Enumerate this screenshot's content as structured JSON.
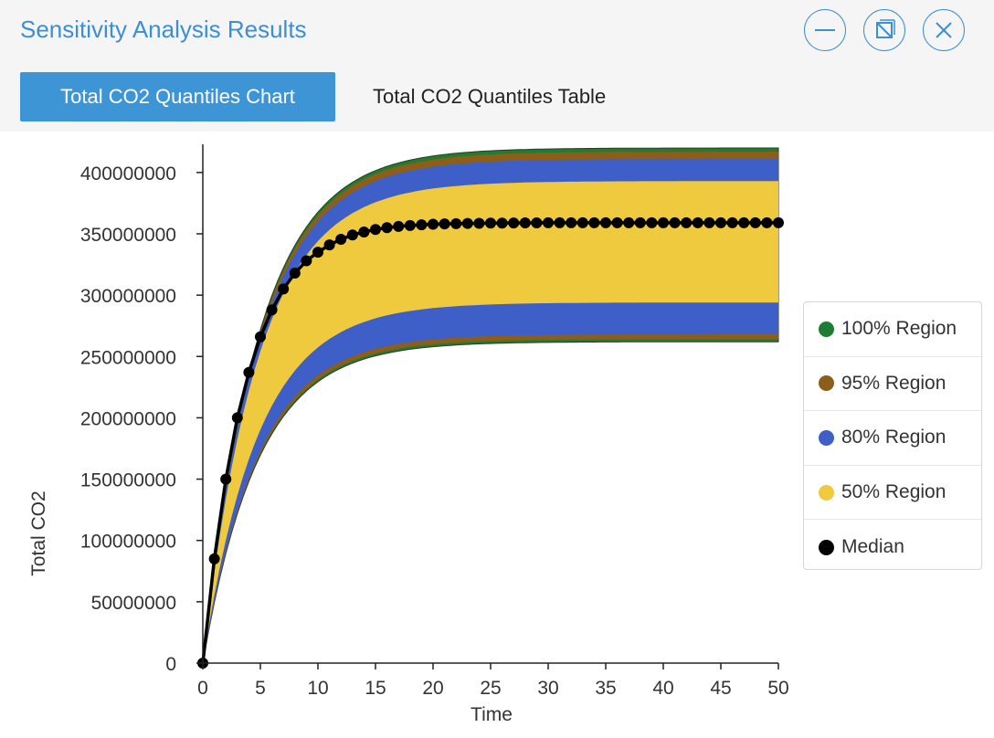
{
  "window": {
    "title": "Sensitivity Analysis Results",
    "buttons": [
      {
        "name": "minimize-button",
        "icon": "minimize-icon"
      },
      {
        "name": "restore-button",
        "icon": "restore-icon"
      },
      {
        "name": "close-button",
        "icon": "close-icon"
      }
    ]
  },
  "tabs": [
    {
      "label": "Total CO2 Quantiles Chart",
      "active": true
    },
    {
      "label": "Total CO2 Quantiles Table",
      "active": false
    }
  ],
  "colors": {
    "accent": "#3d8fd3",
    "tab_active": "#3e95d6",
    "region100": "#1e7d32",
    "region95": "#8c5e1a",
    "region80": "#3f5fc8",
    "region50": "#efc93e",
    "median": "#000000"
  },
  "legend": [
    {
      "label": "100% Region",
      "color": "#1e7d32"
    },
    {
      "label": "95% Region",
      "color": "#8c5e1a"
    },
    {
      "label": "80% Region",
      "color": "#3f5fc8"
    },
    {
      "label": "50% Region",
      "color": "#efc93e"
    },
    {
      "label": "Median",
      "color": "#000000"
    }
  ],
  "chart_data": {
    "type": "area",
    "xlabel": "Time",
    "ylabel": "Total CO2",
    "xlim": [
      0,
      50
    ],
    "ylim": [
      0,
      420000000
    ],
    "xticks": [
      0,
      5,
      10,
      15,
      20,
      25,
      30,
      35,
      40,
      45,
      50
    ],
    "yticks": [
      0,
      50000000,
      100000000,
      150000000,
      200000000,
      250000000,
      300000000,
      350000000,
      400000000
    ],
    "ytick_labels": [
      "0",
      "50000000",
      "100000000",
      "150000000",
      "200000000",
      "250000000",
      "300000000",
      "350000000",
      "400000000"
    ],
    "grid": false,
    "legend_position": "right",
    "x": [
      0,
      1,
      2,
      3,
      4,
      5,
      6,
      7,
      8,
      9,
      10,
      11,
      12,
      13,
      14,
      15,
      16,
      17,
      18,
      19,
      20,
      21,
      22,
      23,
      24,
      25,
      26,
      27,
      28,
      29,
      30,
      31,
      32,
      33,
      34,
      35,
      36,
      37,
      38,
      39,
      40,
      41,
      42,
      43,
      44,
      45,
      46,
      47,
      48,
      49,
      50
    ],
    "median": [
      0,
      85000000,
      150000000,
      200000000,
      237000000,
      266000000,
      288000000,
      305000000,
      318000000,
      328000000,
      335000000,
      341000000,
      345500000,
      349000000,
      351500000,
      353500000,
      355000000,
      356000000,
      356800000,
      357400000,
      357800000,
      358100000,
      358300000,
      358500000,
      358600000,
      358700000,
      358800000,
      358850000,
      358900000,
      358950000,
      359000000,
      359000000,
      359000000,
      359000000,
      359000000,
      359000000,
      359000000,
      359000000,
      359000000,
      359000000,
      359000000,
      359000000,
      359000000,
      359000000,
      359000000,
      359000000,
      359000000,
      359000000,
      359000000,
      359000000,
      359000000
    ],
    "bands": [
      {
        "name": "100% Region",
        "time_constant": 4.8,
        "lower_end": 262000000,
        "upper_end": 420000000
      },
      {
        "name": "95% Region",
        "time_constant": 4.8,
        "lower_end": 264000000,
        "upper_end": 417000000
      },
      {
        "name": "80% Region",
        "time_constant": 4.8,
        "lower_end": 268000000,
        "upper_end": 411000000
      },
      {
        "name": "50% Region",
        "time_constant": 4.8,
        "lower_end": 294000000,
        "upper_end": 393000000
      }
    ]
  }
}
